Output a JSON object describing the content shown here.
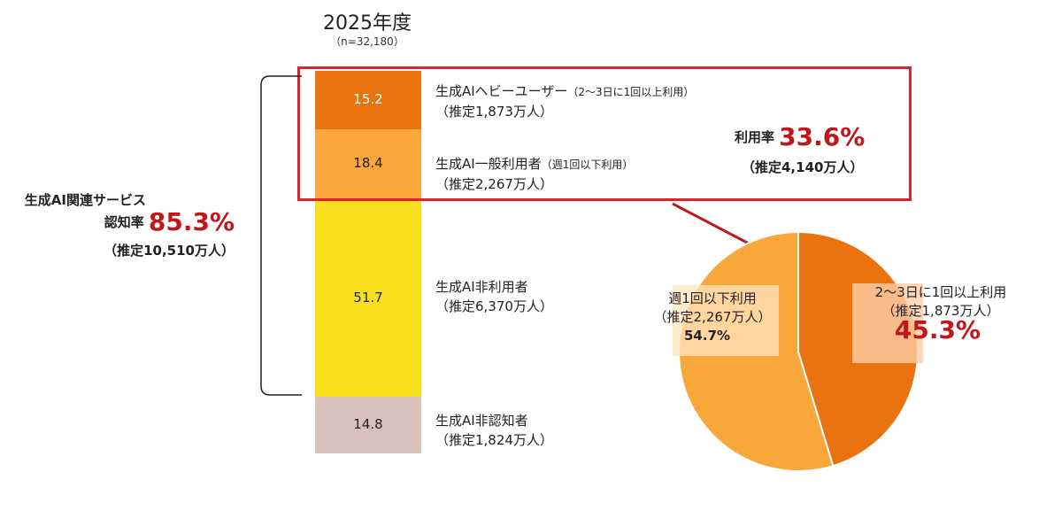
{
  "title": "2025年度",
  "sample": "（n=32,180）",
  "left_group": {
    "label": "生成AI関連サービス",
    "rate_label": "認知率",
    "rate": "85.3%",
    "estimate": "（推定10,510万人）"
  },
  "usage_group": {
    "rate_label": "利用率",
    "rate": "33.6%",
    "estimate": "（推定4,140万人）"
  },
  "categories": [
    {
      "name": "生成AIヘビーユーザー",
      "sub": "（2～3日に1回以上利用）",
      "estimate": "（推定1,873万人）"
    },
    {
      "name": "生成AI一般利用者",
      "sub": "（週1回以下利用）",
      "estimate": "（推定2,267万人）"
    },
    {
      "name": "生成AI非利用者",
      "sub": "",
      "estimate": "（推定6,370万人）"
    },
    {
      "name": "生成AI非認知者",
      "sub": "",
      "estimate": "（推定1,824万人）"
    }
  ],
  "pie_labels": {
    "weekly": {
      "line1": "週1回以下利用",
      "line2": "（推定2,267万人）",
      "pct": "54.7%"
    },
    "heavy": {
      "line1": "2～3日に1回以上利用",
      "line2": "（推定1,873万人）",
      "pct": "45.3%"
    }
  },
  "colors": {
    "heavy": "#e8730f",
    "general": "#f9a63a",
    "nonuser": "#f7df1e",
    "unaware": "#d6c2ba",
    "accent_red": "#c0171d",
    "highlight_box": "#d9232a"
  },
  "chart_data": [
    {
      "type": "bar",
      "stacked": true,
      "categories": [
        "2025年度"
      ],
      "ylim": [
        0,
        100
      ],
      "series": [
        {
          "name": "生成AIヘビーユーザー",
          "values": [
            15.2
          ]
        },
        {
          "name": "生成AI一般利用者",
          "values": [
            18.4
          ]
        },
        {
          "name": "生成AI非利用者",
          "values": [
            51.7
          ]
        },
        {
          "name": "生成AI非認知者",
          "values": [
            14.8
          ]
        }
      ],
      "data_labels": [
        "15.2",
        "18.4",
        "51.7",
        "14.8"
      ]
    },
    {
      "type": "pie",
      "slices": [
        {
          "name": "2～3日に1回以上利用",
          "value": 45.3
        },
        {
          "name": "週1回以下利用",
          "value": 54.7
        }
      ]
    }
  ]
}
